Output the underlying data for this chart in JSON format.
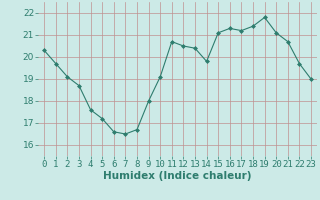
{
  "x": [
    0,
    1,
    2,
    3,
    4,
    5,
    6,
    7,
    8,
    9,
    10,
    11,
    12,
    13,
    14,
    15,
    16,
    17,
    18,
    19,
    20,
    21,
    22,
    23
  ],
  "y": [
    20.3,
    19.7,
    19.1,
    18.7,
    17.6,
    17.2,
    16.6,
    16.5,
    16.7,
    18.0,
    19.1,
    20.7,
    20.5,
    20.4,
    19.8,
    21.1,
    21.3,
    21.2,
    21.4,
    21.8,
    21.1,
    20.7,
    19.7,
    19.0
  ],
  "xlabel": "Humidex (Indice chaleur)",
  "ylim": [
    15.5,
    22.5
  ],
  "xlim": [
    -0.5,
    23.5
  ],
  "yticks": [
    16,
    17,
    18,
    19,
    20,
    21,
    22
  ],
  "xticks": [
    0,
    1,
    2,
    3,
    4,
    5,
    6,
    7,
    8,
    9,
    10,
    11,
    12,
    13,
    14,
    15,
    16,
    17,
    18,
    19,
    20,
    21,
    22,
    23
  ],
  "line_color": "#2e7d6e",
  "marker": "D",
  "marker_size": 2,
  "bg_color": "#cceae7",
  "grid_color": "#c09090",
  "tick_fontsize": 6.5,
  "xlabel_fontsize": 7.5
}
